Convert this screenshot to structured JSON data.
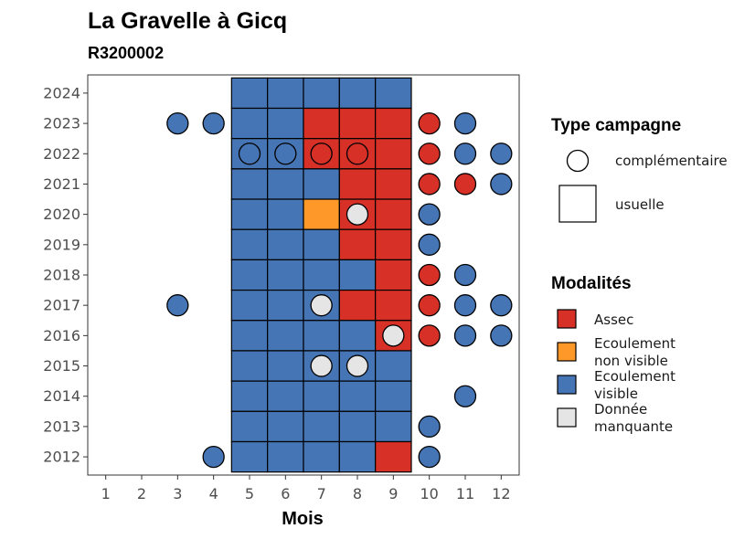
{
  "chart_data": {
    "type": "heatmap",
    "title": "La Gravelle à Gicq",
    "subtitle": "R3200002",
    "xlabel": "Mois",
    "ylabel": "",
    "x_ticks": [
      1,
      2,
      3,
      4,
      5,
      6,
      7,
      8,
      9,
      10,
      11,
      12
    ],
    "y_ticks": [
      2012,
      2013,
      2014,
      2015,
      2016,
      2017,
      2018,
      2019,
      2020,
      2021,
      2022,
      2023,
      2024
    ],
    "xlim": [
      0.5,
      12.5
    ],
    "ylim": [
      2011.4,
      2024.6
    ],
    "legend_shape": {
      "title": "Type campagne",
      "items": [
        {
          "key": "complementaire",
          "label": "complémentaire",
          "shape": "circle"
        },
        {
          "key": "usuelle",
          "label": "usuelle",
          "shape": "square"
        }
      ]
    },
    "legend_fill": {
      "title": "Modalités",
      "items": [
        {
          "key": "A",
          "lines": [
            "Assec"
          ],
          "color": "#d73027"
        },
        {
          "key": "N",
          "lines": [
            "Ecoulement",
            "non visible"
          ],
          "color": "#fe9929"
        },
        {
          "key": "V",
          "lines": [
            "Ecoulement",
            "visible"
          ],
          "color": "#4575b4"
        },
        {
          "key": "M",
          "lines": [
            "Donnée",
            "manquante"
          ],
          "color": "#e5e5e5"
        }
      ]
    },
    "usuelle": [
      {
        "year": 2024,
        "codes": "VVVVV"
      },
      {
        "year": 2023,
        "codes": "VVAAA"
      },
      {
        "year": 2022,
        "codes": "VVAAA"
      },
      {
        "year": 2021,
        "codes": "VVVAA"
      },
      {
        "year": 2020,
        "codes": "VVNAA"
      },
      {
        "year": 2019,
        "codes": "VVVAA"
      },
      {
        "year": 2018,
        "codes": "VVVVA"
      },
      {
        "year": 2017,
        "codes": "VVVAA"
      },
      {
        "year": 2016,
        "codes": "VVVVA"
      },
      {
        "year": 2015,
        "codes": "VVVVV"
      },
      {
        "year": 2014,
        "codes": "VVVVV"
      },
      {
        "year": 2013,
        "codes": "VVVVV"
      },
      {
        "year": 2012,
        "codes": "VVVVA"
      }
    ],
    "usuelle_months": [
      5,
      6,
      7,
      8,
      9
    ],
    "complementaire": [
      {
        "year": 2023,
        "month": 3,
        "code": "V"
      },
      {
        "year": 2023,
        "month": 4,
        "code": "V"
      },
      {
        "year": 2023,
        "month": 10,
        "code": "A"
      },
      {
        "year": 2023,
        "month": 11,
        "code": "V"
      },
      {
        "year": 2022,
        "month": 5,
        "code": "V"
      },
      {
        "year": 2022,
        "month": 6,
        "code": "V"
      },
      {
        "year": 2022,
        "month": 7,
        "code": "A"
      },
      {
        "year": 2022,
        "month": 8,
        "code": "A"
      },
      {
        "year": 2022,
        "month": 10,
        "code": "A"
      },
      {
        "year": 2022,
        "month": 11,
        "code": "V"
      },
      {
        "year": 2022,
        "month": 12,
        "code": "V"
      },
      {
        "year": 2021,
        "month": 10,
        "code": "A"
      },
      {
        "year": 2021,
        "month": 11,
        "code": "A"
      },
      {
        "year": 2021,
        "month": 12,
        "code": "V"
      },
      {
        "year": 2020,
        "month": 8,
        "code": "M"
      },
      {
        "year": 2020,
        "month": 10,
        "code": "V"
      },
      {
        "year": 2019,
        "month": 10,
        "code": "V"
      },
      {
        "year": 2018,
        "month": 10,
        "code": "A"
      },
      {
        "year": 2018,
        "month": 11,
        "code": "V"
      },
      {
        "year": 2017,
        "month": 3,
        "code": "V"
      },
      {
        "year": 2017,
        "month": 7,
        "code": "M"
      },
      {
        "year": 2017,
        "month": 10,
        "code": "A"
      },
      {
        "year": 2017,
        "month": 11,
        "code": "V"
      },
      {
        "year": 2017,
        "month": 12,
        "code": "V"
      },
      {
        "year": 2016,
        "month": 9,
        "code": "M"
      },
      {
        "year": 2016,
        "month": 10,
        "code": "A"
      },
      {
        "year": 2016,
        "month": 11,
        "code": "V"
      },
      {
        "year": 2016,
        "month": 12,
        "code": "V"
      },
      {
        "year": 2015,
        "month": 7,
        "code": "M"
      },
      {
        "year": 2015,
        "month": 8,
        "code": "M"
      },
      {
        "year": 2014,
        "month": 11,
        "code": "V"
      },
      {
        "year": 2013,
        "month": 10,
        "code": "V"
      },
      {
        "year": 2012,
        "month": 4,
        "code": "V"
      },
      {
        "year": 2012,
        "month": 10,
        "code": "V"
      }
    ]
  }
}
